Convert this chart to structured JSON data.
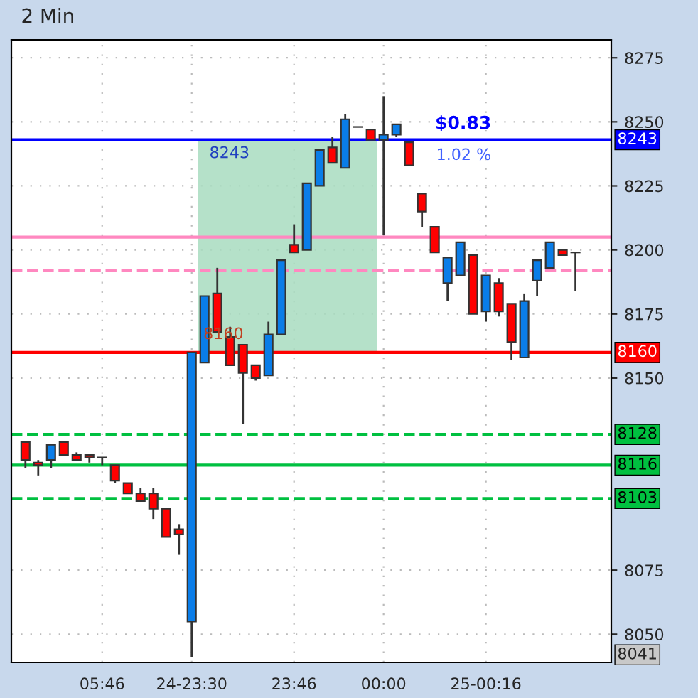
{
  "chart_data": {
    "type": "candlestick",
    "title": "2 Min",
    "categories": [
      null,
      null,
      null,
      null,
      null,
      null,
      "05:46",
      null,
      null,
      null,
      null,
      null,
      null,
      "24-23:30",
      null,
      null,
      null,
      null,
      null,
      null,
      null,
      "23:46",
      null,
      null,
      null,
      null,
      null,
      null,
      "00:00",
      null,
      null,
      null,
      null,
      null,
      null,
      null,
      "25-00:16",
      null,
      null,
      null,
      null,
      null,
      null,
      null
    ],
    "ohlc": [
      [
        8125,
        8125,
        8115,
        8118
      ],
      [
        8117,
        8118,
        8112,
        8116
      ],
      [
        8118,
        8124,
        8115,
        8124
      ],
      [
        8125,
        8125,
        8120,
        8120
      ],
      [
        8120,
        8121,
        8118,
        8118
      ],
      [
        8120,
        8120,
        8117,
        8119
      ],
      [
        8119,
        8119,
        8116,
        8119
      ],
      [
        8116,
        8116,
        8109,
        8110
      ],
      [
        8109,
        8109,
        8105,
        8105
      ],
      [
        8105,
        8107,
        8102,
        8102
      ],
      [
        8105,
        8107,
        8095,
        8099
      ],
      [
        8099,
        8099,
        8088,
        8088
      ],
      [
        8091,
        8093,
        8081,
        8089
      ],
      [
        8055,
        8160,
        8041,
        8160
      ],
      [
        8156,
        8182,
        8156,
        8182
      ],
      [
        8183,
        8193,
        8168,
        8168
      ],
      [
        8166,
        8170,
        8155,
        8155
      ],
      [
        8163,
        8163,
        8132,
        8152
      ],
      [
        8155,
        8155,
        8149,
        8150
      ],
      [
        8151,
        8172,
        8151,
        8167
      ],
      [
        8167,
        8196,
        8167,
        8196
      ],
      [
        8202,
        8210,
        8199,
        8199
      ],
      [
        8200,
        8226,
        8200,
        8226
      ],
      [
        8225,
        8239,
        8225,
        8239
      ],
      [
        8240,
        8244,
        8234,
        8234
      ],
      [
        8232,
        8253,
        8232,
        8251
      ],
      [
        8248,
        8248,
        8248,
        8248
      ],
      [
        8247,
        8247,
        8243,
        8243
      ],
      [
        8243,
        8260,
        8206,
        8245
      ],
      [
        8245,
        8249,
        8244,
        8249
      ],
      [
        8242,
        8242,
        8233,
        8233
      ],
      [
        8222,
        8222,
        8209,
        8215
      ],
      [
        8209,
        8209,
        8199,
        8199
      ],
      [
        8187,
        8197,
        8180,
        8197
      ],
      [
        8190,
        8203,
        8190,
        8203
      ],
      [
        8198,
        8198,
        8175,
        8175
      ],
      [
        8176,
        8190,
        8172,
        8190
      ],
      [
        8187,
        8189,
        8174,
        8176
      ],
      [
        8179,
        8179,
        8157,
        8164
      ],
      [
        8158,
        8183,
        8158,
        8180
      ],
      [
        8188,
        8196,
        8182,
        8196
      ],
      [
        8193,
        8203,
        8193,
        8203
      ],
      [
        8200,
        8200,
        8198,
        8198
      ],
      [
        8199,
        8199,
        8184,
        8199
      ]
    ],
    "colors": [
      "#ff0000",
      "#ff0000",
      "#0a7de8",
      "#ff0000",
      "#ff0000",
      "#ff0000",
      "#000000",
      "#ff0000",
      "#ff0000",
      "#ff0000",
      "#ff0000",
      "#ff0000",
      "#ff0000",
      "#0a7de8",
      "#0a7de8",
      "#ff0000",
      "#ff0000",
      "#ff0000",
      "#ff0000",
      "#0a7de8",
      "#0a7de8",
      "#ff0000",
      "#0a7de8",
      "#0a7de8",
      "#ff0000",
      "#0a7de8",
      "#000000",
      "#ff0000",
      "#0a7de8",
      "#0a7de8",
      "#ff0000",
      "#ff0000",
      "#ff0000",
      "#0a7de8",
      "#0a7de8",
      "#ff0000",
      "#0a7de8",
      "#ff0000",
      "#ff0000",
      "#0a7de8",
      "#0a7de8",
      "#0a7de8",
      "#ff0000",
      "#0a7de8"
    ],
    "ylim": [
      8039,
      8282
    ],
    "yticks": [
      8050,
      8075,
      8150,
      8175,
      8200,
      8225,
      8250,
      8275
    ],
    "ref_lines": [
      {
        "axis": "y",
        "value": 8243,
        "label": "8243",
        "color": "#0000ff",
        "line_style": "solid"
      },
      {
        "axis": "y",
        "value": 8160,
        "label": "8160",
        "color": "#ff0000",
        "line_style": "solid"
      },
      {
        "axis": "y",
        "value": 8128,
        "label": "8128",
        "color": "#00c040",
        "line_style": "dashed"
      },
      {
        "axis": "y",
        "value": 8116,
        "label": "8116",
        "color": "#00c040",
        "line_style": "solid"
      },
      {
        "axis": "y",
        "value": 8103,
        "label": "8103",
        "color": "#00c040",
        "line_style": "dashed"
      },
      {
        "axis": "y",
        "value": 8205,
        "label": null,
        "color": "#ff88c0",
        "line_style": "solid"
      },
      {
        "axis": "y",
        "value": 8192,
        "label": null,
        "color": "#ff88c0",
        "line_style": "dashed"
      }
    ],
    "annotations": [
      {
        "text": "8243",
        "y": 8243
      },
      {
        "text": "8160",
        "y": 8160
      },
      {
        "text": "$0.83",
        "y": 8243
      },
      {
        "text": "1.02 %",
        "y": 8243
      },
      "8041"
    ],
    "grid": true
  }
}
